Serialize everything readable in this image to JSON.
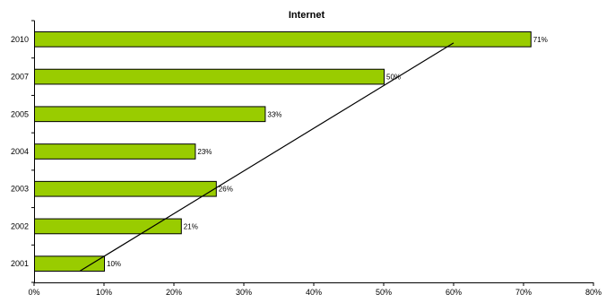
{
  "chart_data": {
    "type": "bar",
    "orientation": "horizontal",
    "title": "Internet",
    "xlabel": "",
    "ylabel": "",
    "categories": [
      "2010",
      "2007",
      "2005",
      "2004",
      "2003",
      "2002",
      "2001"
    ],
    "values": [
      71,
      50,
      33,
      23,
      26,
      21,
      10
    ],
    "data_labels": [
      "71%",
      "50%",
      "33%",
      "23%",
      "26%",
      "21%",
      "10%"
    ],
    "xlim": [
      0,
      80
    ],
    "x_ticks": [
      0,
      10,
      20,
      30,
      40,
      50,
      60,
      70,
      80
    ],
    "x_tick_labels": [
      "0%",
      "10%",
      "20%",
      "30%",
      "40%",
      "50%",
      "60%",
      "70%",
      "80%"
    ],
    "grid": false,
    "legend": "none",
    "bar_color": "#99cc00",
    "bar_edge_color": "#000000",
    "trendline": {
      "type": "linear",
      "start": {
        "category": "2001",
        "value": 6.6
      },
      "end": {
        "category": "2010",
        "value": 60
      }
    }
  }
}
